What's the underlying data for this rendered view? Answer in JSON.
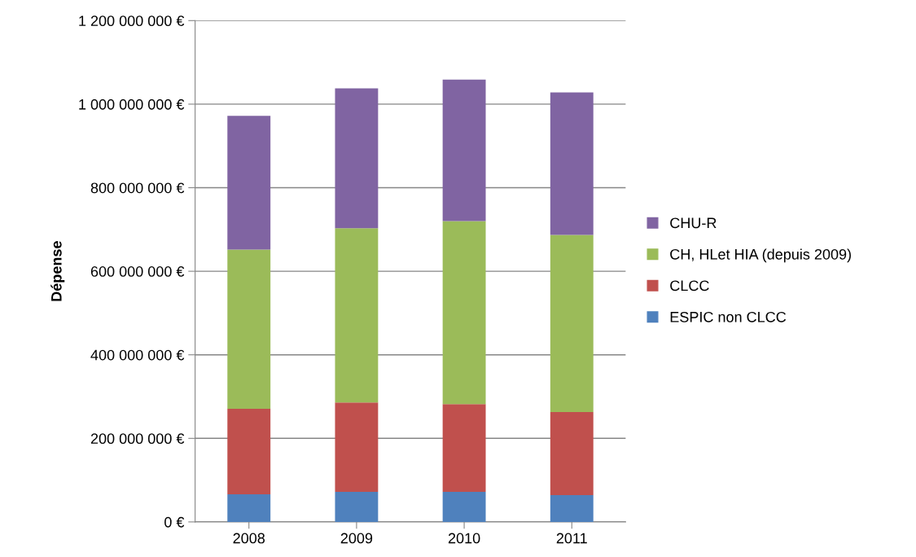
{
  "chart_data": {
    "type": "bar",
    "stacked": true,
    "ylabel": "Dépense",
    "categories": [
      "2008",
      "2009",
      "2010",
      "2011"
    ],
    "series": [
      {
        "name": "ESPIC non CLCC",
        "color": "#4f81bd",
        "values": [
          66000000,
          72000000,
          72000000,
          64000000
        ]
      },
      {
        "name": "CLCC",
        "color": "#c0504d",
        "values": [
          205000000,
          214000000,
          210000000,
          199000000
        ]
      },
      {
        "name": "CH, HLet HIA (depuis 2009)",
        "color": "#9bbb59",
        "values": [
          381000000,
          417000000,
          438000000,
          424000000
        ]
      },
      {
        "name": "CHU-R",
        "color": "#8064a2",
        "values": [
          320000000,
          335000000,
          339000000,
          341000000
        ]
      }
    ],
    "ylim": [
      0,
      1200000000
    ],
    "yticks": [
      {
        "value": 0,
        "label": "0 €"
      },
      {
        "value": 200000000,
        "label": "200 000 000 €"
      },
      {
        "value": 400000000,
        "label": "400 000 000 €"
      },
      {
        "value": 600000000,
        "label": "600 000 000 €"
      },
      {
        "value": 800000000,
        "label": "800 000 000 €"
      },
      {
        "value": 1000000000,
        "label": "1 000 000 000 €"
      },
      {
        "value": 1200000000,
        "label": "1 200 000 000 €"
      }
    ],
    "grid": "y",
    "legend": "right"
  }
}
